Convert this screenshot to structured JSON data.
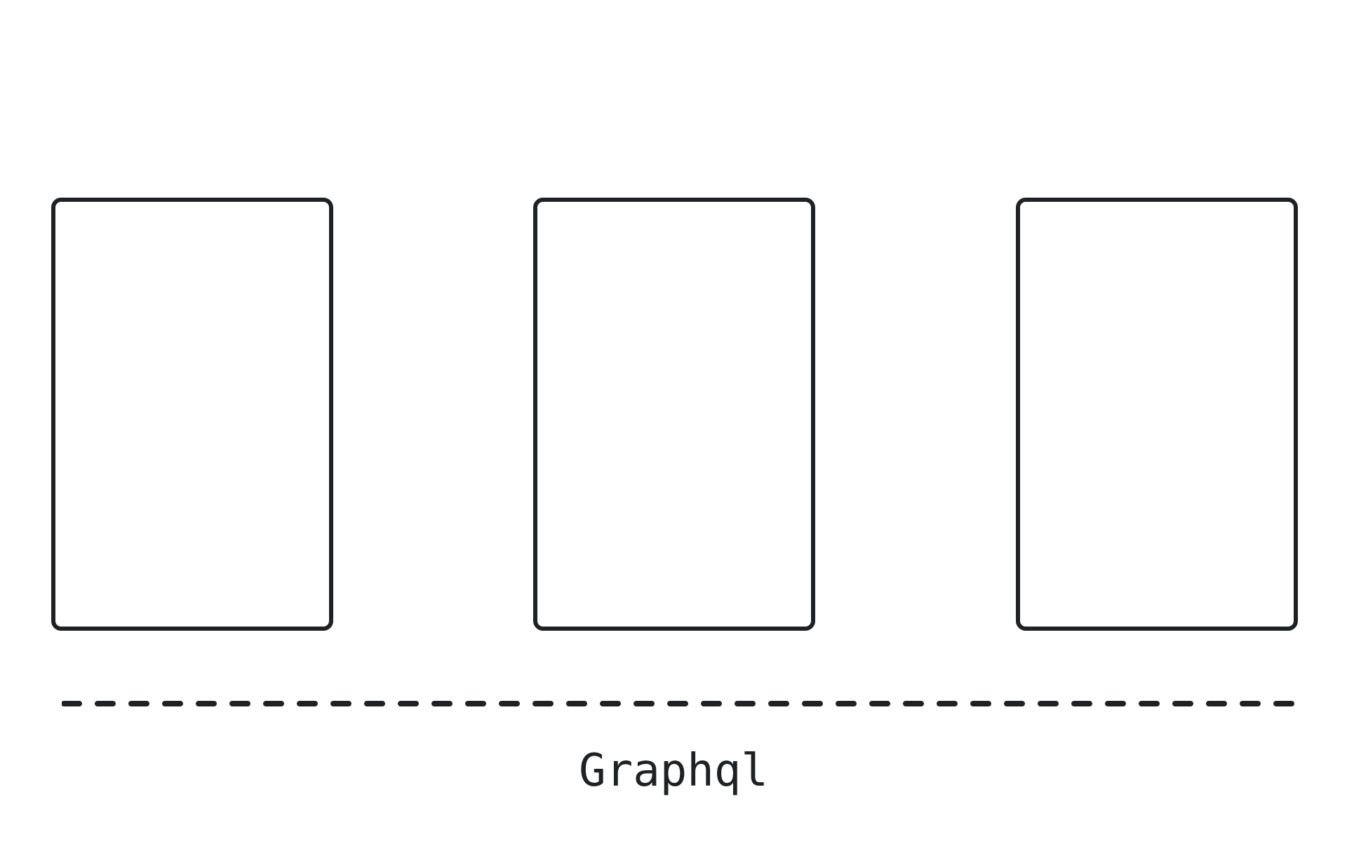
{
  "colors": {
    "stroke": "#1f2225",
    "background": "#ffffff"
  },
  "panels": [
    {
      "label": ""
    },
    {
      "label": ""
    },
    {
      "label": ""
    }
  ],
  "caption": "Graphql"
}
